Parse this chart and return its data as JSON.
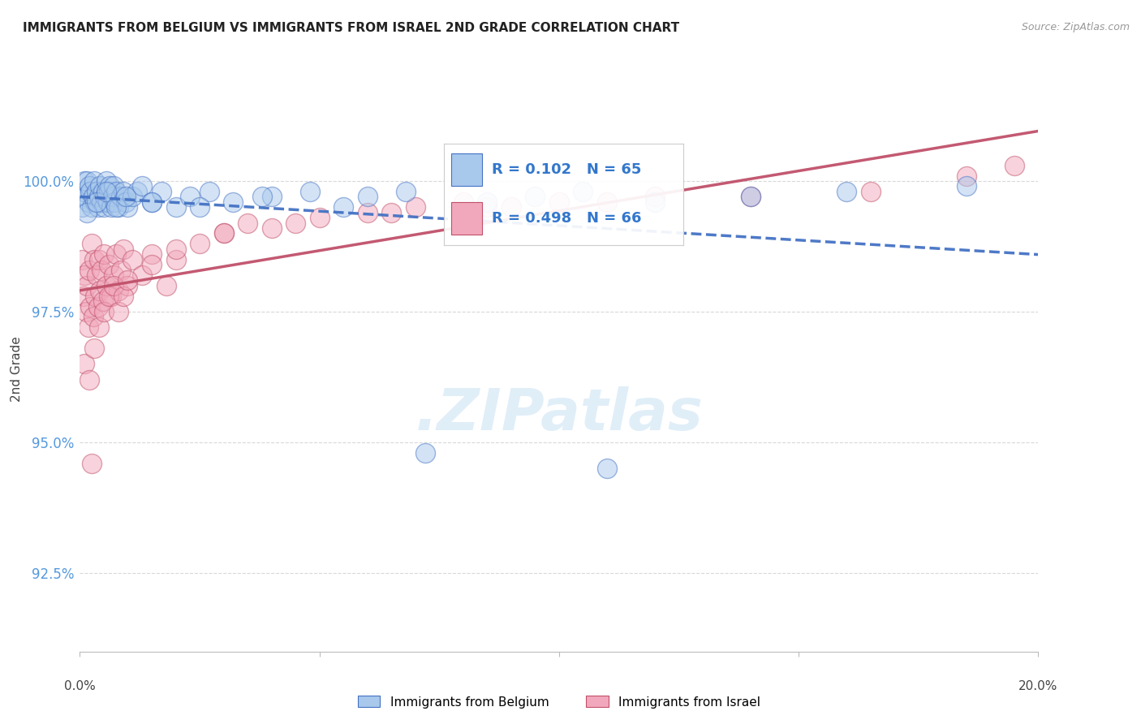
{
  "title": "IMMIGRANTS FROM BELGIUM VS IMMIGRANTS FROM ISRAEL 2ND GRADE CORRELATION CHART",
  "source": "Source: ZipAtlas.com",
  "ylabel": "2nd Grade",
  "yticks": [
    92.5,
    95.0,
    97.5,
    100.0
  ],
  "xlim": [
    0.0,
    20.0
  ],
  "ylim": [
    91.0,
    101.8
  ],
  "belgium_R": 0.102,
  "belgium_N": 65,
  "israel_R": 0.498,
  "israel_N": 66,
  "belgium_color": "#A8C8EC",
  "israel_color": "#F2A8BC",
  "belgium_line_color": "#4472C4",
  "israel_line_color": "#C0506A",
  "background_color": "#FFFFFF",
  "grid_color": "#C8C8C8",
  "belgium_x": [
    0.05,
    0.08,
    0.1,
    0.12,
    0.15,
    0.18,
    0.2,
    0.22,
    0.25,
    0.28,
    0.3,
    0.32,
    0.35,
    0.38,
    0.4,
    0.42,
    0.45,
    0.48,
    0.5,
    0.52,
    0.55,
    0.58,
    0.6,
    0.62,
    0.65,
    0.68,
    0.7,
    0.72,
    0.75,
    0.8,
    0.85,
    0.9,
    0.95,
    1.0,
    1.1,
    1.2,
    1.3,
    1.5,
    1.7,
    2.0,
    2.3,
    2.7,
    3.2,
    4.0,
    4.8,
    5.5,
    6.0,
    7.2,
    8.5,
    9.5,
    10.5,
    12.0,
    14.0,
    16.0,
    18.5,
    0.15,
    0.35,
    0.55,
    0.75,
    0.95,
    1.5,
    2.5,
    3.8,
    6.8,
    11.0
  ],
  "belgium_y": [
    99.5,
    99.8,
    100.0,
    99.7,
    100.0,
    99.6,
    99.9,
    99.8,
    99.5,
    99.7,
    100.0,
    99.6,
    99.8,
    99.5,
    99.7,
    99.9,
    99.6,
    99.8,
    99.5,
    99.7,
    100.0,
    99.6,
    99.8,
    99.9,
    99.5,
    99.7,
    99.9,
    99.6,
    99.8,
    99.5,
    99.7,
    99.8,
    99.6,
    99.5,
    99.7,
    99.8,
    99.9,
    99.6,
    99.8,
    99.5,
    99.7,
    99.8,
    99.6,
    99.7,
    99.8,
    99.5,
    99.7,
    94.8,
    99.6,
    99.7,
    99.8,
    99.6,
    99.7,
    99.8,
    99.9,
    99.4,
    99.6,
    99.8,
    99.5,
    99.7,
    99.6,
    99.5,
    99.7,
    99.8,
    94.5
  ],
  "israel_x": [
    0.05,
    0.08,
    0.1,
    0.12,
    0.15,
    0.18,
    0.2,
    0.22,
    0.25,
    0.28,
    0.3,
    0.32,
    0.35,
    0.38,
    0.4,
    0.42,
    0.45,
    0.48,
    0.5,
    0.55,
    0.6,
    0.65,
    0.7,
    0.75,
    0.8,
    0.85,
    0.9,
    1.0,
    1.1,
    1.3,
    1.5,
    1.8,
    2.0,
    2.5,
    3.0,
    3.5,
    4.0,
    5.0,
    6.0,
    7.0,
    8.0,
    9.0,
    10.0,
    12.0,
    0.1,
    0.2,
    0.3,
    0.4,
    0.5,
    0.6,
    0.7,
    0.8,
    0.9,
    1.0,
    1.5,
    2.0,
    3.0,
    4.5,
    6.5,
    8.5,
    11.0,
    14.0,
    16.5,
    18.5,
    0.25,
    19.5
  ],
  "israel_y": [
    98.5,
    97.8,
    98.2,
    97.5,
    98.0,
    97.2,
    98.3,
    97.6,
    98.8,
    97.4,
    98.5,
    97.8,
    98.2,
    97.6,
    98.5,
    97.9,
    98.3,
    97.7,
    98.6,
    98.0,
    98.4,
    97.8,
    98.2,
    98.6,
    97.9,
    98.3,
    98.7,
    98.0,
    98.5,
    98.2,
    98.6,
    98.0,
    98.5,
    98.8,
    99.0,
    99.2,
    99.1,
    99.3,
    99.4,
    99.5,
    99.6,
    99.5,
    99.6,
    99.7,
    96.5,
    96.2,
    96.8,
    97.2,
    97.5,
    97.8,
    98.0,
    97.5,
    97.8,
    98.1,
    98.4,
    98.7,
    99.0,
    99.2,
    99.4,
    99.5,
    99.6,
    99.7,
    99.8,
    100.1,
    94.6,
    100.3
  ]
}
